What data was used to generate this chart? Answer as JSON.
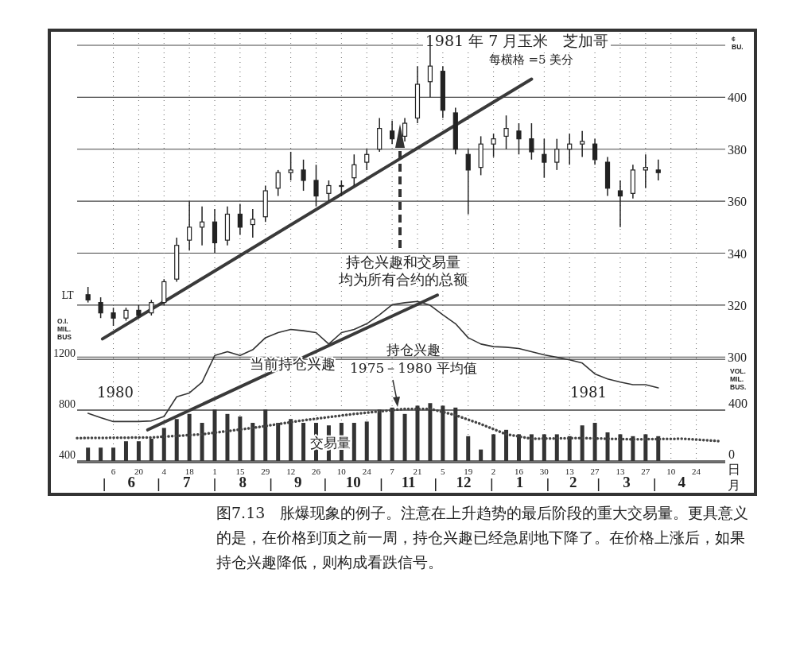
{
  "chart_data": {
    "type": "candlestick",
    "title": "1981 年 7 月玉米　芝加哥",
    "subtitle": "每横格 =5 美分",
    "xlabel": "日月",
    "ylabel": "¢ BU.",
    "y2label": "O.I. MIL. BUS",
    "y3label": "VOL. MIL. BUS.",
    "annotations": [
      "持仓兴趣和交易量",
      "均为所有合约的总额",
      "当前持仓兴趣",
      "持仓兴趣",
      "1975－1980 平均值",
      "交易量",
      "1980",
      "1981",
      "LT",
      "图7.13　胀爆现象的例子。注意在上升趋势的最后阶段的重大交易量。更具意义的是，在价格到顶之前一周，持仓兴趣已经急剧地下降了。在价格上涨后，如果持仓兴趣降低，则构成看跌信号。"
    ],
    "x": [
      "1980-05-23",
      "1980-05-30",
      "1980-06-06",
      "1980-06-13",
      "1980-06-20",
      "1980-06-27",
      "1980-07-04",
      "1980-07-11",
      "1980-07-18",
      "1980-07-25",
      "1980-08-01",
      "1980-08-08",
      "1980-08-15",
      "1980-08-22",
      "1980-08-29",
      "1980-09-05",
      "1980-09-12",
      "1980-09-19",
      "1980-09-26",
      "1980-10-03",
      "1980-10-10",
      "1980-10-17",
      "1980-10-24",
      "1980-10-31",
      "1980-11-07",
      "1980-11-14",
      "1980-11-21",
      "1980-11-28",
      "1980-12-05",
      "1980-12-12",
      "1980-12-19",
      "1980-12-26",
      "1981-01-02",
      "1981-01-09",
      "1981-01-16",
      "1981-01-23",
      "1981-01-30",
      "1981-02-06",
      "1981-02-13",
      "1981-02-20",
      "1981-02-27",
      "1981-03-06",
      "1981-03-13",
      "1981-03-20",
      "1981-03-27",
      "1981-04-03"
    ],
    "ohlc": [
      [
        324,
        327,
        321,
        322
      ],
      [
        321,
        323,
        315,
        317
      ],
      [
        317,
        319,
        312,
        315
      ],
      [
        315,
        319,
        314,
        318
      ],
      [
        318,
        320,
        315,
        316
      ],
      [
        317,
        322,
        316,
        321
      ],
      [
        321,
        330,
        320,
        329
      ],
      [
        330,
        346,
        329,
        343
      ],
      [
        345,
        360,
        341,
        350
      ],
      [
        350,
        358,
        343,
        352
      ],
      [
        352,
        357,
        340,
        344
      ],
      [
        345,
        358,
        343,
        355
      ],
      [
        355,
        359,
        347,
        350
      ],
      [
        351,
        357,
        346,
        353
      ],
      [
        354,
        366,
        352,
        364
      ],
      [
        365,
        372,
        362,
        371
      ],
      [
        371,
        379,
        368,
        372
      ],
      [
        372,
        376,
        364,
        368
      ],
      [
        368,
        374,
        358,
        362
      ],
      [
        363,
        368,
        360,
        366
      ],
      [
        366,
        368,
        362,
        366
      ],
      [
        369,
        378,
        366,
        374
      ],
      [
        375,
        380,
        372,
        378
      ],
      [
        380,
        392,
        379,
        388
      ],
      [
        387,
        391,
        382,
        384
      ],
      [
        385,
        392,
        383,
        390
      ],
      [
        392,
        412,
        390,
        405
      ],
      [
        406,
        420,
        400,
        412
      ],
      [
        410,
        412,
        392,
        395
      ],
      [
        394,
        396,
        378,
        380
      ],
      [
        378,
        380,
        355,
        372
      ],
      [
        373,
        385,
        370,
        382
      ],
      [
        382,
        386,
        377,
        384
      ],
      [
        385,
        393,
        380,
        388
      ],
      [
        387,
        390,
        378,
        384
      ],
      [
        384,
        390,
        376,
        379
      ],
      [
        378,
        384,
        369,
        375
      ],
      [
        375,
        384,
        372,
        380
      ],
      [
        380,
        386,
        374,
        382
      ],
      [
        382,
        387,
        377,
        383
      ],
      [
        382,
        384,
        374,
        376
      ],
      [
        375,
        377,
        362,
        365
      ],
      [
        364,
        368,
        350,
        362
      ],
      [
        363,
        374,
        361,
        372
      ],
      [
        372,
        378,
        365,
        373
      ],
      [
        372,
        376,
        368,
        371
      ]
    ],
    "series": [
      {
        "type": "bar",
        "axis": "y3",
        "color": "#333333",
        "values": [
          105,
          105,
          105,
          155,
          155,
          175,
          260,
          330,
          370,
          300,
          405,
          370,
          350,
          300,
          405,
          300,
          330,
          300,
          300,
          280,
          300,
          300,
          310,
          405,
          420,
          370,
          435,
          455,
          435,
          420,
          195,
          90,
          210,
          245,
          210,
          210,
          210,
          210,
          195,
          280,
          300,
          225,
          210,
          195,
          210,
          195
        ]
      },
      {
        "type": "line",
        "axis": "y2",
        "color": "#333333",
        "values": [
          775,
          740,
          710,
          710,
          710,
          715,
          750,
          905,
          935,
          1020,
          1230,
          1260,
          1230,
          1275,
          1370,
          1410,
          1435,
          1425,
          1410,
          1320,
          1410,
          1435,
          1480,
          1550,
          1630,
          1645,
          1655,
          1625,
          1550,
          1480,
          1370,
          1320,
          1300,
          1295,
          1285,
          1260,
          1235,
          1215,
          1195,
          1170,
          1085,
          1045,
          1020,
          1000,
          1000,
          975
        ]
      },
      {
        "type": "line",
        "axis": "y2",
        "color": "#444444",
        "line_style": "dotted",
        "x": [
          "1980-05-17",
          "1980-06-27",
          "1980-07-25",
          "1980-08-22",
          "1980-09-19",
          "1980-10-17",
          "1980-11-14",
          "1980-11-28",
          "1980-12-12",
          "1980-12-26",
          "1981-01-09",
          "1981-01-23",
          "1981-02-20",
          "1981-03-20",
          "1981-04-17",
          "1981-05-08"
        ],
        "values": [
          580,
          585,
          610,
          660,
          720,
          770,
          810,
          810,
          760,
          690,
          610,
          575,
          580,
          570,
          575,
          555
        ]
      },
      {
        "type": "line",
        "axis": "y",
        "color": "#3a3a3a",
        "x": [
          "1980-05-31",
          "1981-01-23"
        ],
        "values": [
          307,
          407
        ]
      },
      {
        "type": "line",
        "axis": "y2",
        "color": "#3a3a3a",
        "x": [
          "1980-06-25",
          "1980-12-02"
        ],
        "values": [
          645,
          1705
        ]
      }
    ],
    "color": "#222222",
    "xlim": [
      "1980-05-17",
      "1981-05-10"
    ],
    "xticks": [
      {
        "value": "1980-06-06",
        "label": "6"
      },
      {
        "value": "1980-06-20",
        "label": "20"
      },
      {
        "value": "1980-07-04",
        "label": "4"
      },
      {
        "value": "1980-07-18",
        "label": "18"
      },
      {
        "value": "1980-08-01",
        "label": "1"
      },
      {
        "value": "1980-08-15",
        "label": "15"
      },
      {
        "value": "1980-08-29",
        "label": "29"
      },
      {
        "value": "1980-09-12",
        "label": "12"
      },
      {
        "value": "1980-09-26",
        "label": "26"
      },
      {
        "value": "1980-10-10",
        "label": "10"
      },
      {
        "value": "1980-10-24",
        "label": "24"
      },
      {
        "value": "1980-11-07",
        "label": "7"
      },
      {
        "value": "1980-11-21",
        "label": "21"
      },
      {
        "value": "1980-12-05",
        "label": "5"
      },
      {
        "value": "1980-12-19",
        "label": "19"
      },
      {
        "value": "1981-01-02",
        "label": "2"
      },
      {
        "value": "1981-01-16",
        "label": "16"
      },
      {
        "value": "1981-01-30",
        "label": "30"
      },
      {
        "value": "1981-02-13",
        "label": "13"
      },
      {
        "value": "1981-02-27",
        "label": "27"
      },
      {
        "value": "1981-03-13",
        "label": "13"
      },
      {
        "value": "1981-03-27",
        "label": "27"
      },
      {
        "value": "1981-04-10",
        "label": "10"
      },
      {
        "value": "1981-04-24",
        "label": "24"
      }
    ],
    "x2lim": [
      "1980-05-17",
      "1981-05-10"
    ],
    "x2ticks": [
      {
        "value": "1980-06",
        "label": "6"
      },
      {
        "value": "1980-07",
        "label": "7"
      },
      {
        "value": "1980-08",
        "label": "8"
      },
      {
        "value": "1980-09",
        "label": "9"
      },
      {
        "value": "1980-10",
        "label": "10"
      },
      {
        "value": "1980-11",
        "label": "11"
      },
      {
        "value": "1980-12",
        "label": "12"
      },
      {
        "value": "1981-01",
        "label": "1"
      },
      {
        "value": "1981-02",
        "label": "2"
      },
      {
        "value": "1981-03",
        "label": "3"
      },
      {
        "value": "1981-04",
        "label": "4"
      }
    ],
    "ylim": [
      260,
      420
    ],
    "yticks": [
      300,
      320,
      340,
      360,
      380,
      400,
      {
        "value": 420,
        "label": null
      }
    ],
    "y2lim": [
      400,
      3670
    ],
    "y2ticks": [
      400,
      800,
      1200
    ],
    "y3lim": [
      0,
      3270
    ],
    "y3ticks": [
      0,
      400
    ],
    "grid": true
  }
}
